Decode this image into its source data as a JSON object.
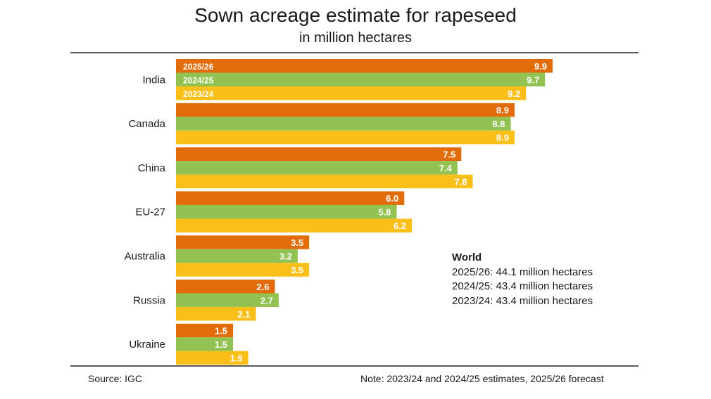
{
  "title": "Sown acreage estimate for rapeseed",
  "subtitle": "in million hectares",
  "chart_data": {
    "type": "bar",
    "orientation": "horizontal",
    "title": "Sown acreage estimate for rapeseed",
    "subtitle": "in million hectares",
    "categories": [
      "India",
      "Canada",
      "China",
      "EU-27",
      "Australia",
      "Russia",
      "Ukraine"
    ],
    "series": [
      {
        "name": "2025/26",
        "color": "#e36c0a",
        "values": [
          9.9,
          8.9,
          7.5,
          6.0,
          3.5,
          2.6,
          1.5
        ],
        "labels": [
          "9.9",
          "8.9",
          "7.5",
          "6.0",
          "3.5",
          "2.6",
          "1.5"
        ]
      },
      {
        "name": "2024/25",
        "color": "#92c352",
        "values": [
          9.7,
          8.8,
          7.4,
          5.8,
          3.2,
          2.7,
          1.5
        ],
        "labels": [
          "9.7",
          "8.8",
          "7.4",
          "5.8",
          "3.2",
          "2.7",
          "1.5"
        ]
      },
      {
        "name": "2023/24",
        "color": "#fbbf1a",
        "values": [
          9.2,
          8.9,
          7.8,
          6.2,
          3.5,
          2.1,
          1.9
        ],
        "labels": [
          "9.2",
          "8.9",
          "7.8",
          "6.2",
          "3.5",
          "2.1",
          "1.9"
        ]
      }
    ],
    "xlim": [
      0,
      9.9
    ],
    "grid": false,
    "legend": "inside-first-group"
  },
  "world": {
    "title": "World",
    "lines": [
      "2025/26: 44.1 million hectares",
      "2024/25: 43.4 million hectares",
      "2023/24: 43.4 million hectares"
    ]
  },
  "source": "Source: IGC",
  "note": "Note: 2023/24 and 2024/25 estimates, 2025/26 forecast"
}
